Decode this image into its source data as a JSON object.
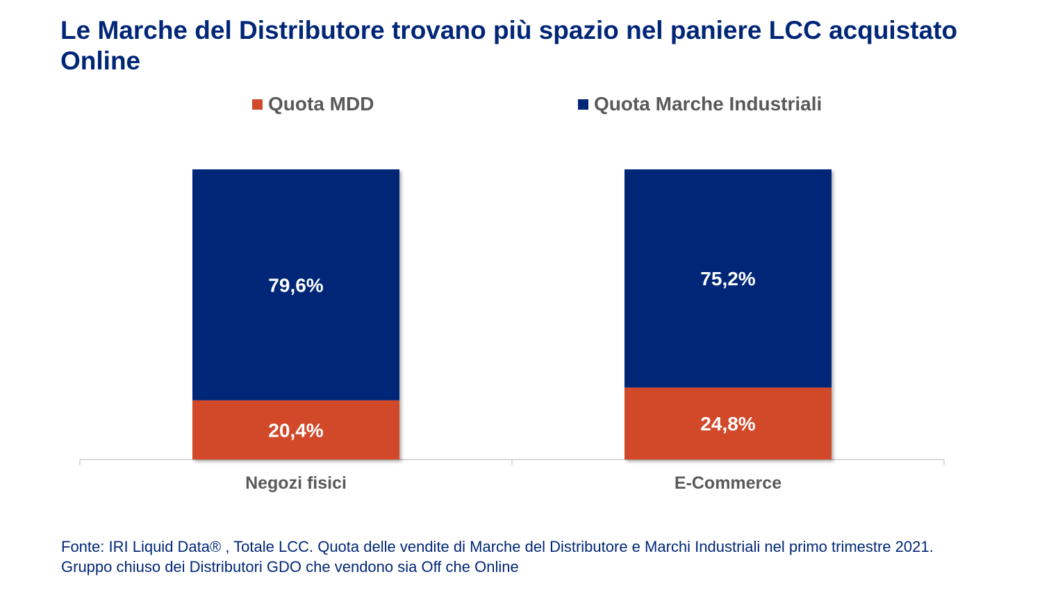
{
  "title": "Le Marche del Distributore trovano più spazio nel paniere LCC acquistato Online",
  "source": "Fonte: IRI Liquid Data® , Totale LCC. Quota delle vendite di Marche del Distributore e Marchi Industriali nel primo trimestre 2021. Gruppo chiuso  dei Distributori GDO che vendono sia Off che Online",
  "colors": {
    "mdd": "#D24A2B",
    "industriali": "#002677",
    "title": "#002677",
    "axis_text": "#595959",
    "axis_line": "#D9D9D9"
  },
  "chart_data": {
    "type": "bar",
    "stacked": true,
    "categories": [
      "Negozi fisici",
      "E-Commerce"
    ],
    "series": [
      {
        "name": "Quota MDD",
        "values": [
          20.4,
          24.8
        ],
        "labels": [
          "20,4%",
          "24,8%"
        ]
      },
      {
        "name": "Quota Marche Industriali",
        "values": [
          79.6,
          75.2
        ],
        "labels": [
          "79,6%",
          "75,2%"
        ]
      }
    ],
    "ylim": [
      0,
      100
    ],
    "legend_position": "top",
    "grid": false
  }
}
